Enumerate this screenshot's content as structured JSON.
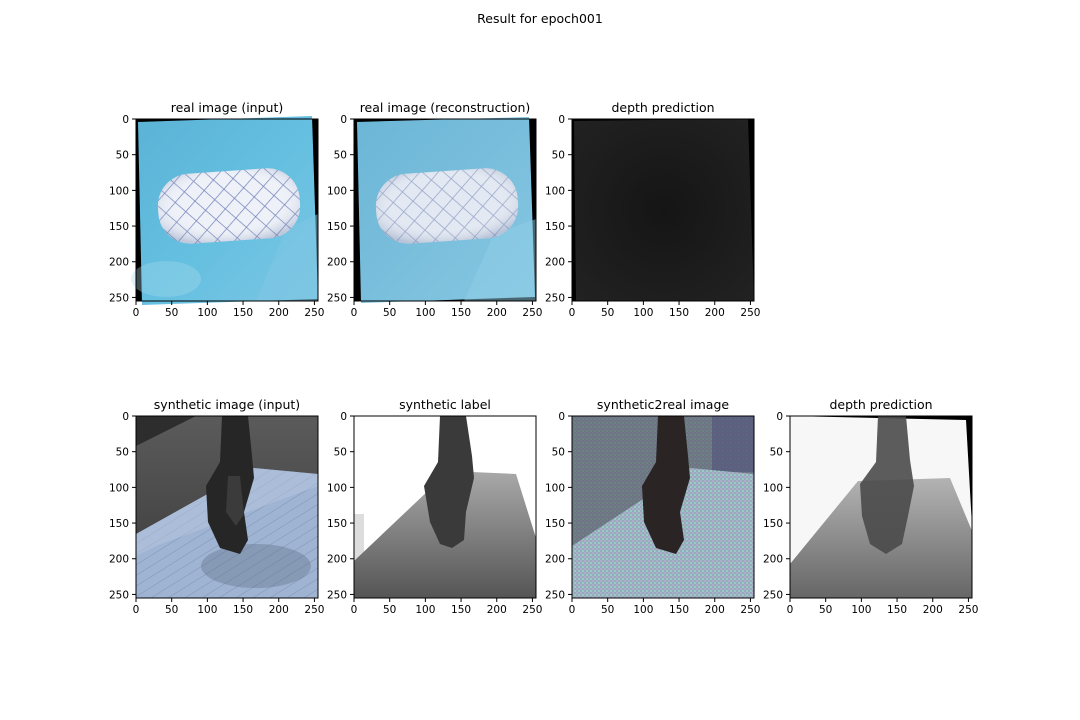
{
  "figure": {
    "suptitle": "Result for epoch001"
  },
  "chart_data": [
    {
      "type": "image",
      "title": "real image (input)",
      "content": "light-blue tabletop with a white cylindrical cushion covered in a blue diamond lattice pattern",
      "xlim": [
        0,
        255
      ],
      "ylim": [
        255,
        0
      ],
      "xticks": [
        0,
        50,
        100,
        150,
        200,
        250
      ],
      "yticks": [
        0,
        50,
        100,
        150,
        200,
        250
      ]
    },
    {
      "type": "image",
      "title": "real image (reconstruction)",
      "content": "slightly blurred reconstruction of the blue tabletop and patterned cushion",
      "xlim": [
        0,
        255
      ],
      "ylim": [
        255,
        0
      ],
      "xticks": [
        0,
        50,
        100,
        150,
        200,
        250
      ],
      "yticks": [
        0,
        50,
        100,
        150,
        200,
        250
      ]
    },
    {
      "type": "image",
      "title": "depth prediction",
      "content": "almost uniform very dark grey depth map",
      "xlim": [
        0,
        255
      ],
      "ylim": [
        255,
        0
      ],
      "xticks": [
        0,
        50,
        100,
        150,
        200,
        250
      ],
      "yticks": [
        0,
        50,
        100,
        150,
        200,
        250
      ]
    },
    {
      "type": "image",
      "title": "synthetic image (input)",
      "content": "rendered dark grey room, pale blue-grey wooden floor, dark bag-like object standing in the middle",
      "xlim": [
        0,
        255
      ],
      "ylim": [
        255,
        0
      ],
      "xticks": [
        0,
        50,
        100,
        150,
        200,
        250
      ],
      "yticks": [
        0,
        50,
        100,
        150,
        200,
        250
      ]
    },
    {
      "type": "image",
      "title": "synthetic label",
      "content": "grayscale depth label: white background, grey gradient floor plane, dark object silhouette",
      "xlim": [
        0,
        255
      ],
      "ylim": [
        255,
        0
      ],
      "xticks": [
        0,
        50,
        100,
        150,
        200,
        250
      ],
      "yticks": [
        0,
        50,
        100,
        150,
        200,
        250
      ]
    },
    {
      "type": "image",
      "title": "synthetic2real image",
      "content": "translated synthetic scene with iridescent checkerboard artefacts",
      "xlim": [
        0,
        255
      ],
      "ylim": [
        255,
        0
      ],
      "xticks": [
        0,
        50,
        100,
        150,
        200,
        250
      ],
      "yticks": [
        0,
        50,
        100,
        150,
        200,
        250
      ]
    },
    {
      "type": "image",
      "title": "depth prediction",
      "content": "blurred grayscale depth map similar to the synthetic label",
      "xlim": [
        0,
        255
      ],
      "ylim": [
        255,
        0
      ],
      "xticks": [
        0,
        50,
        100,
        150,
        200,
        250
      ],
      "yticks": [
        0,
        50,
        100,
        150,
        200,
        250
      ]
    }
  ]
}
